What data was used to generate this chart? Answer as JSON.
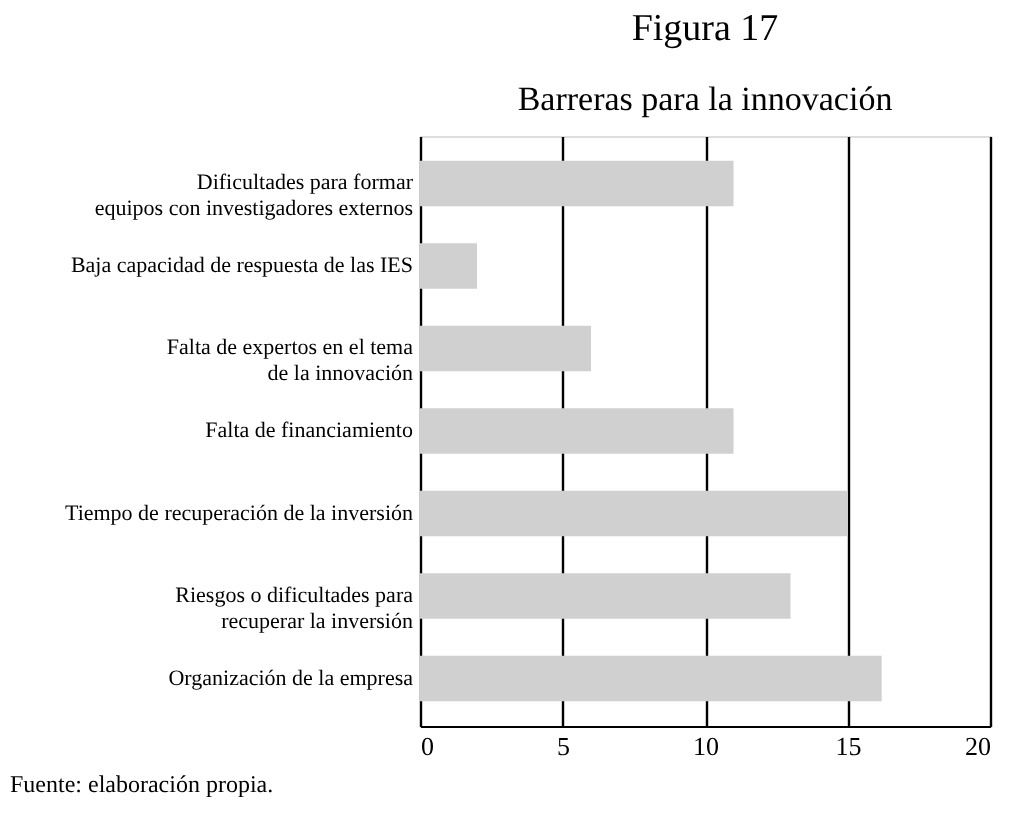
{
  "chart_data": {
    "type": "bar",
    "orientation": "horizontal",
    "title": "Figura 17",
    "subtitle": "Barreras para la innovación",
    "categories": [
      "Dificultades para formar\nequipos con investigadores externos",
      "Baja capacidad de respuesta de las IES",
      "Falta de expertos en el tema\nde la innovación",
      "Falta de financiamiento",
      "Tiempo de recuperación de la inversión",
      "Riesgos o dificultades para\nrecuperar la inversión",
      "Organización de la empresa"
    ],
    "values": [
      11,
      2,
      6,
      11,
      15,
      13,
      16.2
    ],
    "color": "#d0d0d0",
    "xlim": [
      0,
      20
    ],
    "xticks": [
      0,
      5,
      10,
      15,
      20
    ],
    "grid": "x",
    "annotations": [
      "Fuente: elaboración propia."
    ]
  }
}
